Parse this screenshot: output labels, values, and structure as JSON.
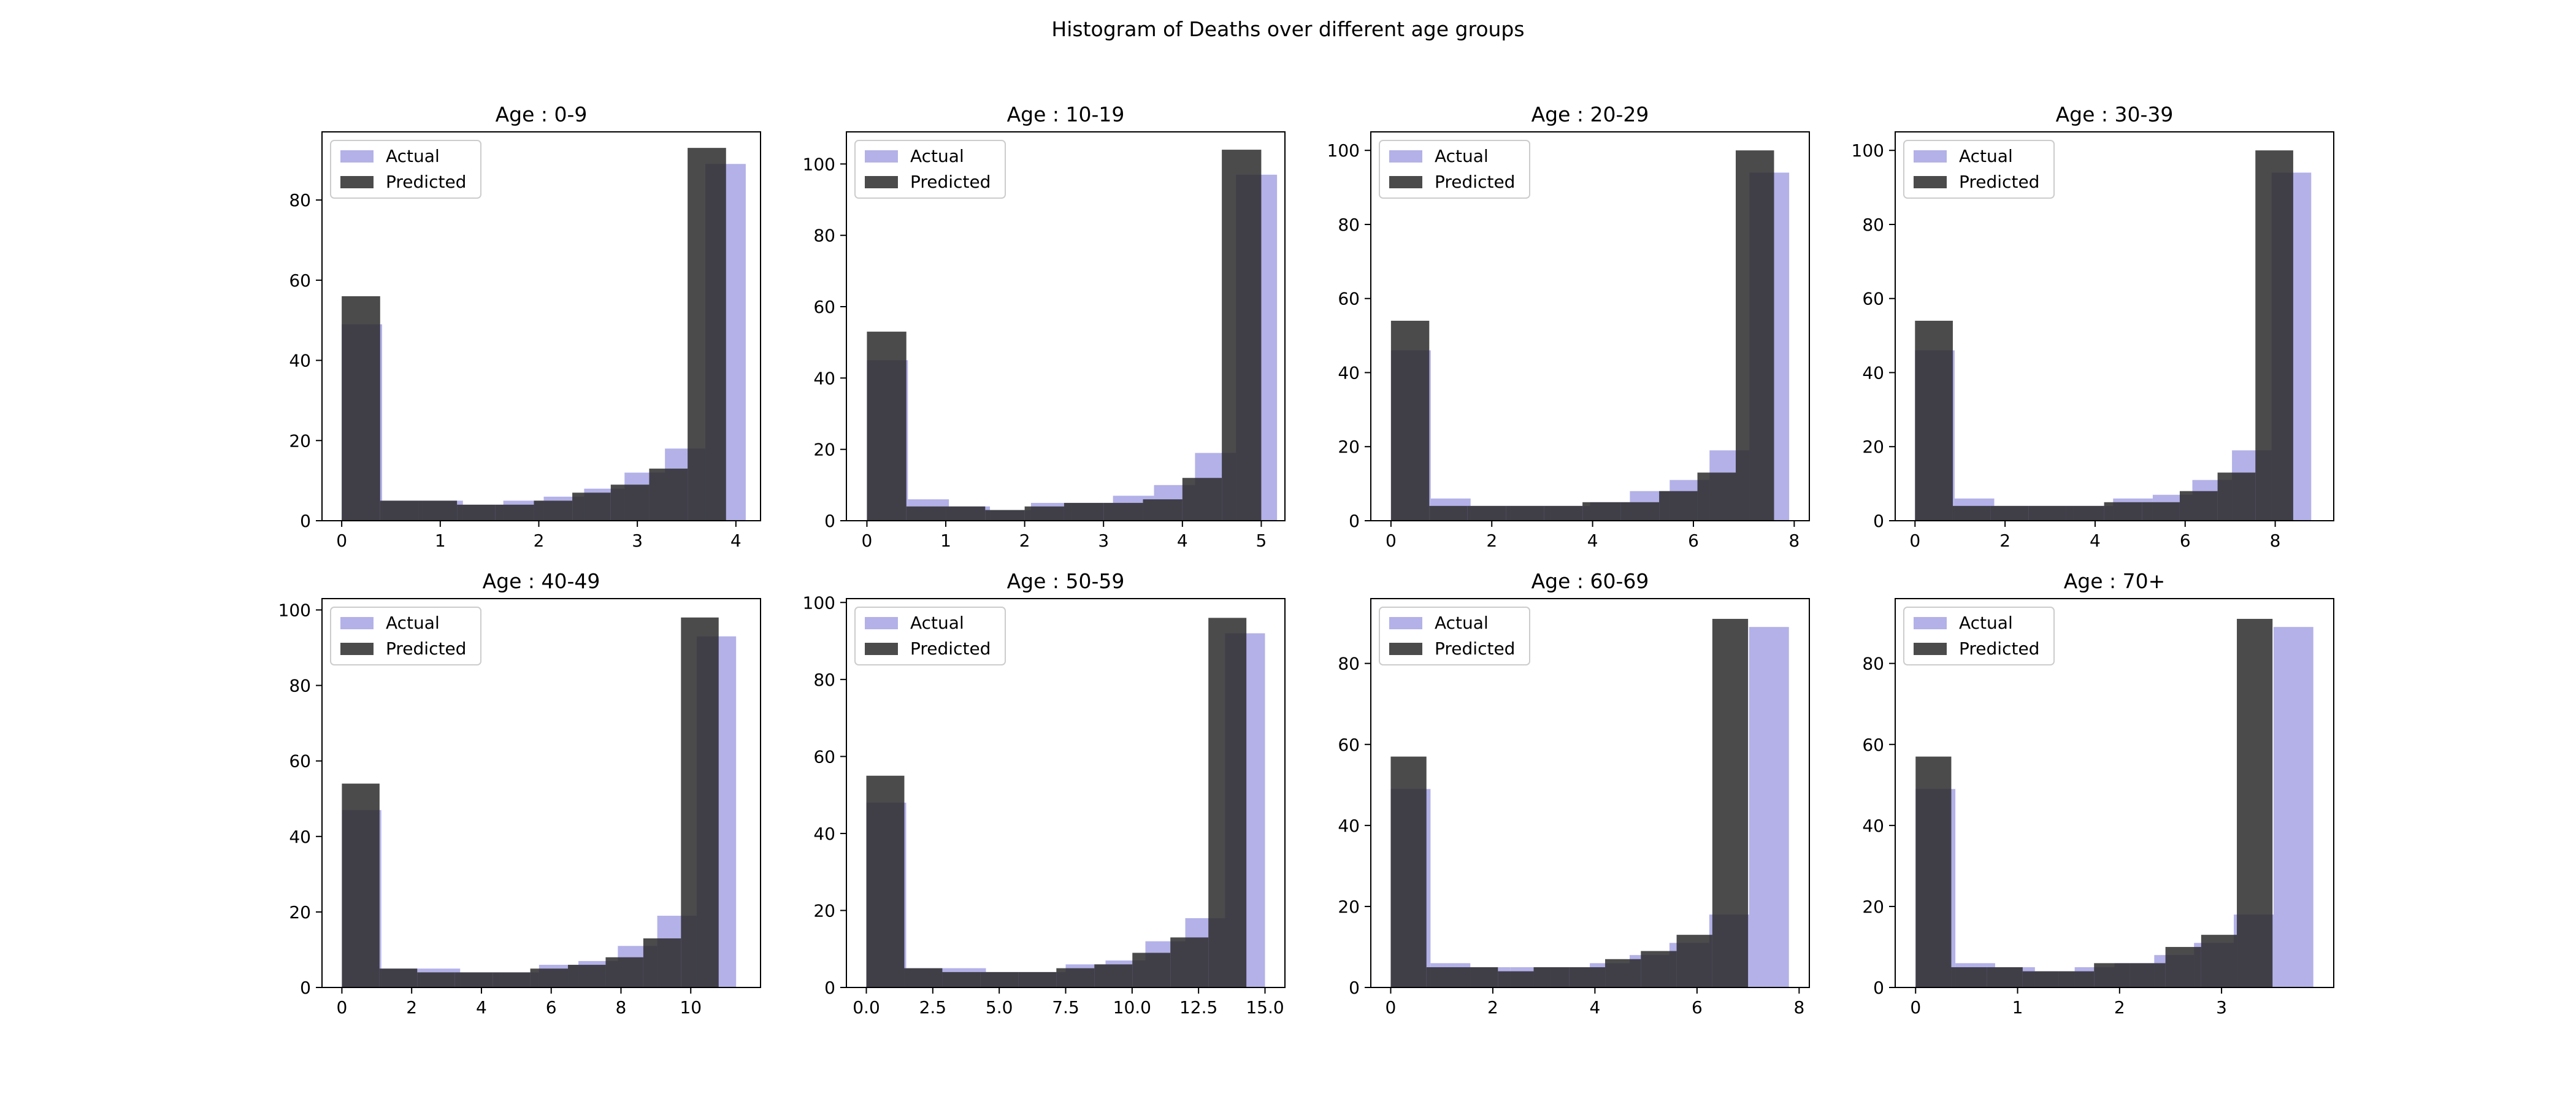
{
  "figure": {
    "title": "Histogram of Deaths over different age groups",
    "actual_color": "#b3b1e8",
    "predicted_color": "#2b2b2b",
    "predicted_opacity": 0.85
  },
  "chart_data": [
    {
      "type": "bar",
      "title": "Age : 0-9",
      "xlim": [
        -0.2,
        4.25
      ],
      "ylim": [
        0,
        97
      ],
      "xticks": [
        0,
        1,
        2,
        3,
        4
      ],
      "xtick_labels": [
        "0",
        "1",
        "2",
        "3",
        "4"
      ],
      "yticks": [
        0,
        20,
        40,
        60,
        80
      ],
      "ytick_labels": [
        "0",
        "20",
        "40",
        "60",
        "80"
      ],
      "legend": [
        "Actual",
        "Predicted"
      ],
      "legend_loc": "upper-left",
      "series": [
        {
          "name": "Actual",
          "bins": [
            0,
            0.41,
            0.82,
            1.23,
            1.64,
            2.05,
            2.46,
            2.87,
            3.28,
            3.69,
            4.1
          ],
          "values": [
            49,
            5,
            5,
            4,
            5,
            6,
            8,
            12,
            18,
            89
          ]
        },
        {
          "name": "Predicted",
          "bins": [
            0,
            0.39,
            0.78,
            1.17,
            1.56,
            1.95,
            2.34,
            2.73,
            3.12,
            3.51,
            3.9
          ],
          "values": [
            56,
            5,
            5,
            4,
            4,
            5,
            7,
            9,
            13,
            93
          ]
        }
      ]
    },
    {
      "type": "bar",
      "title": "Age : 10-19",
      "xlim": [
        -0.26,
        5.3
      ],
      "ylim": [
        0,
        109
      ],
      "xticks": [
        0,
        1,
        2,
        3,
        4,
        5
      ],
      "xtick_labels": [
        "0",
        "1",
        "2",
        "3",
        "4",
        "5"
      ],
      "yticks": [
        0,
        20,
        40,
        60,
        80,
        100
      ],
      "ytick_labels": [
        "0",
        "20",
        "40",
        "60",
        "80",
        "100"
      ],
      "legend": [
        "Actual",
        "Predicted"
      ],
      "legend_loc": "upper-left",
      "series": [
        {
          "name": "Actual",
          "bins": [
            0,
            0.52,
            1.04,
            1.56,
            2.08,
            2.6,
            3.12,
            3.64,
            4.16,
            4.68,
            5.2
          ],
          "values": [
            45,
            6,
            4,
            3,
            5,
            5,
            7,
            10,
            19,
            97
          ]
        },
        {
          "name": "Predicted",
          "bins": [
            0,
            0.5,
            1.0,
            1.5,
            2.0,
            2.5,
            3.0,
            3.5,
            4.0,
            4.5,
            5.0
          ],
          "values": [
            53,
            4,
            4,
            3,
            4,
            5,
            5,
            6,
            12,
            104
          ]
        }
      ]
    },
    {
      "type": "bar",
      "title": "Age : 20-29",
      "xlim": [
        -0.4,
        8.3
      ],
      "ylim": [
        0,
        105
      ],
      "xticks": [
        0,
        2,
        4,
        6,
        8
      ],
      "xtick_labels": [
        "0",
        "2",
        "4",
        "6",
        "8"
      ],
      "yticks": [
        0,
        20,
        40,
        60,
        80,
        100
      ],
      "ytick_labels": [
        "0",
        "20",
        "40",
        "60",
        "80",
        "100"
      ],
      "legend": [
        "Actual",
        "Predicted"
      ],
      "legend_loc": "upper-left",
      "series": [
        {
          "name": "Actual",
          "bins": [
            0,
            0.79,
            1.58,
            2.37,
            3.16,
            3.95,
            4.74,
            5.53,
            6.32,
            7.11,
            7.9
          ],
          "values": [
            46,
            6,
            4,
            4,
            4,
            5,
            8,
            11,
            19,
            94
          ]
        },
        {
          "name": "Predicted",
          "bins": [
            0,
            0.76,
            1.52,
            2.28,
            3.04,
            3.8,
            4.56,
            5.32,
            6.08,
            6.84,
            7.6
          ],
          "values": [
            54,
            4,
            4,
            4,
            4,
            5,
            5,
            8,
            13,
            100
          ]
        }
      ]
    },
    {
      "type": "bar",
      "title": "Age : 30-39",
      "xlim": [
        -0.44,
        9.3
      ],
      "ylim": [
        0,
        105
      ],
      "xticks": [
        0,
        2,
        4,
        6,
        8
      ],
      "xtick_labels": [
        "0",
        "2",
        "4",
        "6",
        "8"
      ],
      "yticks": [
        0,
        20,
        40,
        60,
        80,
        100
      ],
      "ytick_labels": [
        "0",
        "20",
        "40",
        "60",
        "80",
        "100"
      ],
      "legend": [
        "Actual",
        "Predicted"
      ],
      "legend_loc": "upper-left",
      "series": [
        {
          "name": "Actual",
          "bins": [
            0,
            0.88,
            1.76,
            2.64,
            3.52,
            4.4,
            5.28,
            6.16,
            7.04,
            7.92,
            8.8
          ],
          "values": [
            46,
            6,
            4,
            4,
            4,
            6,
            7,
            11,
            19,
            94
          ]
        },
        {
          "name": "Predicted",
          "bins": [
            0,
            0.84,
            1.68,
            2.52,
            3.36,
            4.2,
            5.04,
            5.88,
            6.72,
            7.56,
            8.4
          ],
          "values": [
            54,
            4,
            4,
            4,
            4,
            5,
            5,
            8,
            13,
            100
          ]
        }
      ]
    },
    {
      "type": "bar",
      "title": "Age : 40-49",
      "xlim": [
        -0.57,
        12.0
      ],
      "ylim": [
        0,
        103
      ],
      "xticks": [
        0,
        2,
        4,
        6,
        8,
        10
      ],
      "xtick_labels": [
        "0",
        "2",
        "4",
        "6",
        "8",
        "10"
      ],
      "yticks": [
        0,
        20,
        40,
        60,
        80,
        100
      ],
      "ytick_labels": [
        "0",
        "20",
        "40",
        "60",
        "80",
        "100"
      ],
      "legend": [
        "Actual",
        "Predicted"
      ],
      "legend_loc": "upper-left",
      "series": [
        {
          "name": "Actual",
          "bins": [
            0,
            1.13,
            2.26,
            3.39,
            4.52,
            5.65,
            6.78,
            7.91,
            9.04,
            10.17,
            11.3
          ],
          "values": [
            47,
            5,
            5,
            4,
            4,
            6,
            7,
            11,
            19,
            93
          ]
        },
        {
          "name": "Predicted",
          "bins": [
            0,
            1.08,
            2.16,
            3.24,
            4.32,
            5.4,
            6.48,
            7.56,
            8.64,
            9.72,
            10.8
          ],
          "values": [
            54,
            5,
            4,
            4,
            4,
            5,
            6,
            8,
            13,
            98
          ]
        }
      ]
    },
    {
      "type": "bar",
      "title": "Age : 50-59",
      "xlim": [
        -0.75,
        15.75
      ],
      "ylim": [
        0,
        101
      ],
      "xticks": [
        0,
        2.5,
        5,
        7.5,
        10,
        12.5,
        15
      ],
      "xtick_labels": [
        "0.0",
        "2.5",
        "5.0",
        "7.5",
        "10.0",
        "12.5",
        "15.0"
      ],
      "yticks": [
        0,
        20,
        40,
        60,
        80,
        100
      ],
      "ytick_labels": [
        "0",
        "20",
        "40",
        "60",
        "80",
        "100"
      ],
      "legend": [
        "Actual",
        "Predicted"
      ],
      "legend_loc": "upper-left",
      "series": [
        {
          "name": "Actual",
          "bins": [
            0,
            1.5,
            3.0,
            4.5,
            6.0,
            7.5,
            9.0,
            10.5,
            12.0,
            13.5,
            15.0
          ],
          "values": [
            48,
            5,
            5,
            4,
            4,
            6,
            7,
            12,
            18,
            92
          ]
        },
        {
          "name": "Predicted",
          "bins": [
            0,
            1.43,
            2.86,
            4.29,
            5.72,
            7.15,
            8.58,
            10.01,
            11.44,
            12.87,
            14.3
          ],
          "values": [
            55,
            5,
            4,
            4,
            4,
            5,
            6,
            9,
            13,
            96
          ]
        }
      ]
    },
    {
      "type": "bar",
      "title": "Age : 60-69",
      "xlim": [
        -0.39,
        8.2
      ],
      "ylim": [
        0,
        96
      ],
      "xticks": [
        0,
        2,
        4,
        6,
        8
      ],
      "xtick_labels": [
        "0",
        "2",
        "4",
        "6",
        "8"
      ],
      "yticks": [
        0,
        20,
        40,
        60,
        80
      ],
      "ytick_labels": [
        "0",
        "20",
        "40",
        "60",
        "80"
      ],
      "legend": [
        "Actual",
        "Predicted"
      ],
      "legend_loc": "upper-left",
      "series": [
        {
          "name": "Actual",
          "bins": [
            0,
            0.78,
            1.56,
            2.34,
            3.12,
            3.9,
            4.68,
            5.46,
            6.24,
            7.02,
            7.8
          ],
          "values": [
            49,
            6,
            5,
            5,
            5,
            6,
            8,
            11,
            18,
            89
          ]
        },
        {
          "name": "Predicted",
          "bins": [
            0,
            0.7,
            1.4,
            2.1,
            2.8,
            3.5,
            4.2,
            4.9,
            5.6,
            6.3,
            7.0
          ],
          "values": [
            57,
            5,
            5,
            4,
            5,
            5,
            7,
            9,
            13,
            91
          ]
        }
      ]
    },
    {
      "type": "bar",
      "title": "Age : 70+",
      "xlim": [
        -0.2,
        4.1
      ],
      "ylim": [
        0,
        96
      ],
      "xticks": [
        0,
        1,
        2,
        3
      ],
      "xtick_labels": [
        "0",
        "1",
        "2",
        "3"
      ],
      "yticks": [
        0,
        20,
        40,
        60,
        80
      ],
      "ytick_labels": [
        "0",
        "20",
        "40",
        "60",
        "80"
      ],
      "legend": [
        "Actual",
        "Predicted"
      ],
      "legend_loc": "upper-left",
      "series": [
        {
          "name": "Actual",
          "bins": [
            0,
            0.39,
            0.78,
            1.17,
            1.56,
            1.95,
            2.34,
            2.73,
            3.12,
            3.51,
            3.9
          ],
          "values": [
            49,
            6,
            5,
            4,
            5,
            6,
            8,
            11,
            18,
            89
          ]
        },
        {
          "name": "Predicted",
          "bins": [
            0,
            0.35,
            0.7,
            1.05,
            1.4,
            1.75,
            2.1,
            2.45,
            2.8,
            3.15,
            3.5
          ],
          "values": [
            57,
            5,
            5,
            4,
            4,
            6,
            6,
            10,
            13,
            91
          ]
        }
      ]
    }
  ]
}
